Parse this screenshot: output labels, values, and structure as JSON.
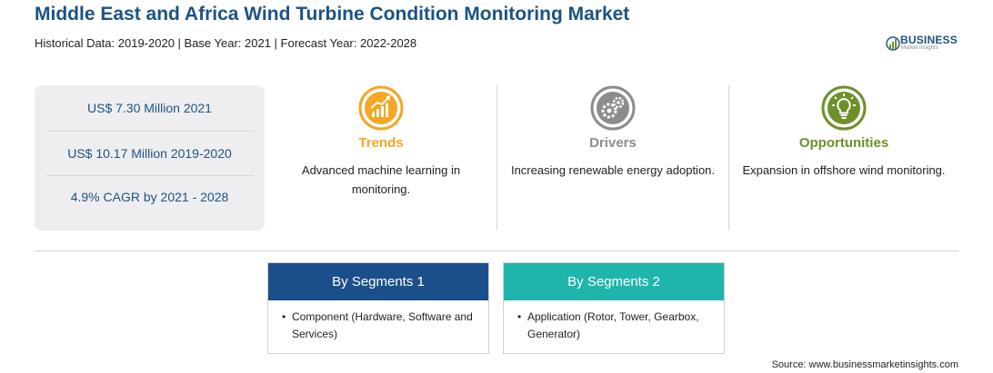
{
  "header": {
    "title": "Middle East and Africa Wind Turbine Condition Monitoring Market",
    "subtitle": "Historical Data: 2019-2020 | Base Year: 2021 | Forecast Year: 2022-2028"
  },
  "logo": {
    "name": "BUSINESS",
    "tagline": "Market Insights"
  },
  "stats": [
    {
      "text": "US$ 7.30 Million 2021"
    },
    {
      "text": "US$ 10.17 Million 2019-2020"
    },
    {
      "text": "4.9% CAGR by 2021 - 2028"
    }
  ],
  "cards": [
    {
      "title": "Trends",
      "text": "Advanced machine learning in monitoring.",
      "icon": "trend-chart-icon",
      "color": "#f5a623"
    },
    {
      "title": "Drivers",
      "text": "Increasing renewable energy adoption.",
      "icon": "gears-icon",
      "color": "#8c8c8c"
    },
    {
      "title": "Opportunities",
      "text": "Expansion in offshore wind monitoring.",
      "icon": "lightbulb-icon",
      "color": "#6f8f2a"
    }
  ],
  "segments": [
    {
      "title": "By Segments 1",
      "bullet": "•",
      "item": "Component (Hardware, Software and Services)",
      "color": "#1b4f8a"
    },
    {
      "title": "By Segments 2",
      "bullet": "•",
      "item": "Application (Rotor, Tower, Gearbox, Generator)",
      "color": "#1fb5ad"
    }
  ],
  "source": "Source: www.businessmarketinsights.com"
}
